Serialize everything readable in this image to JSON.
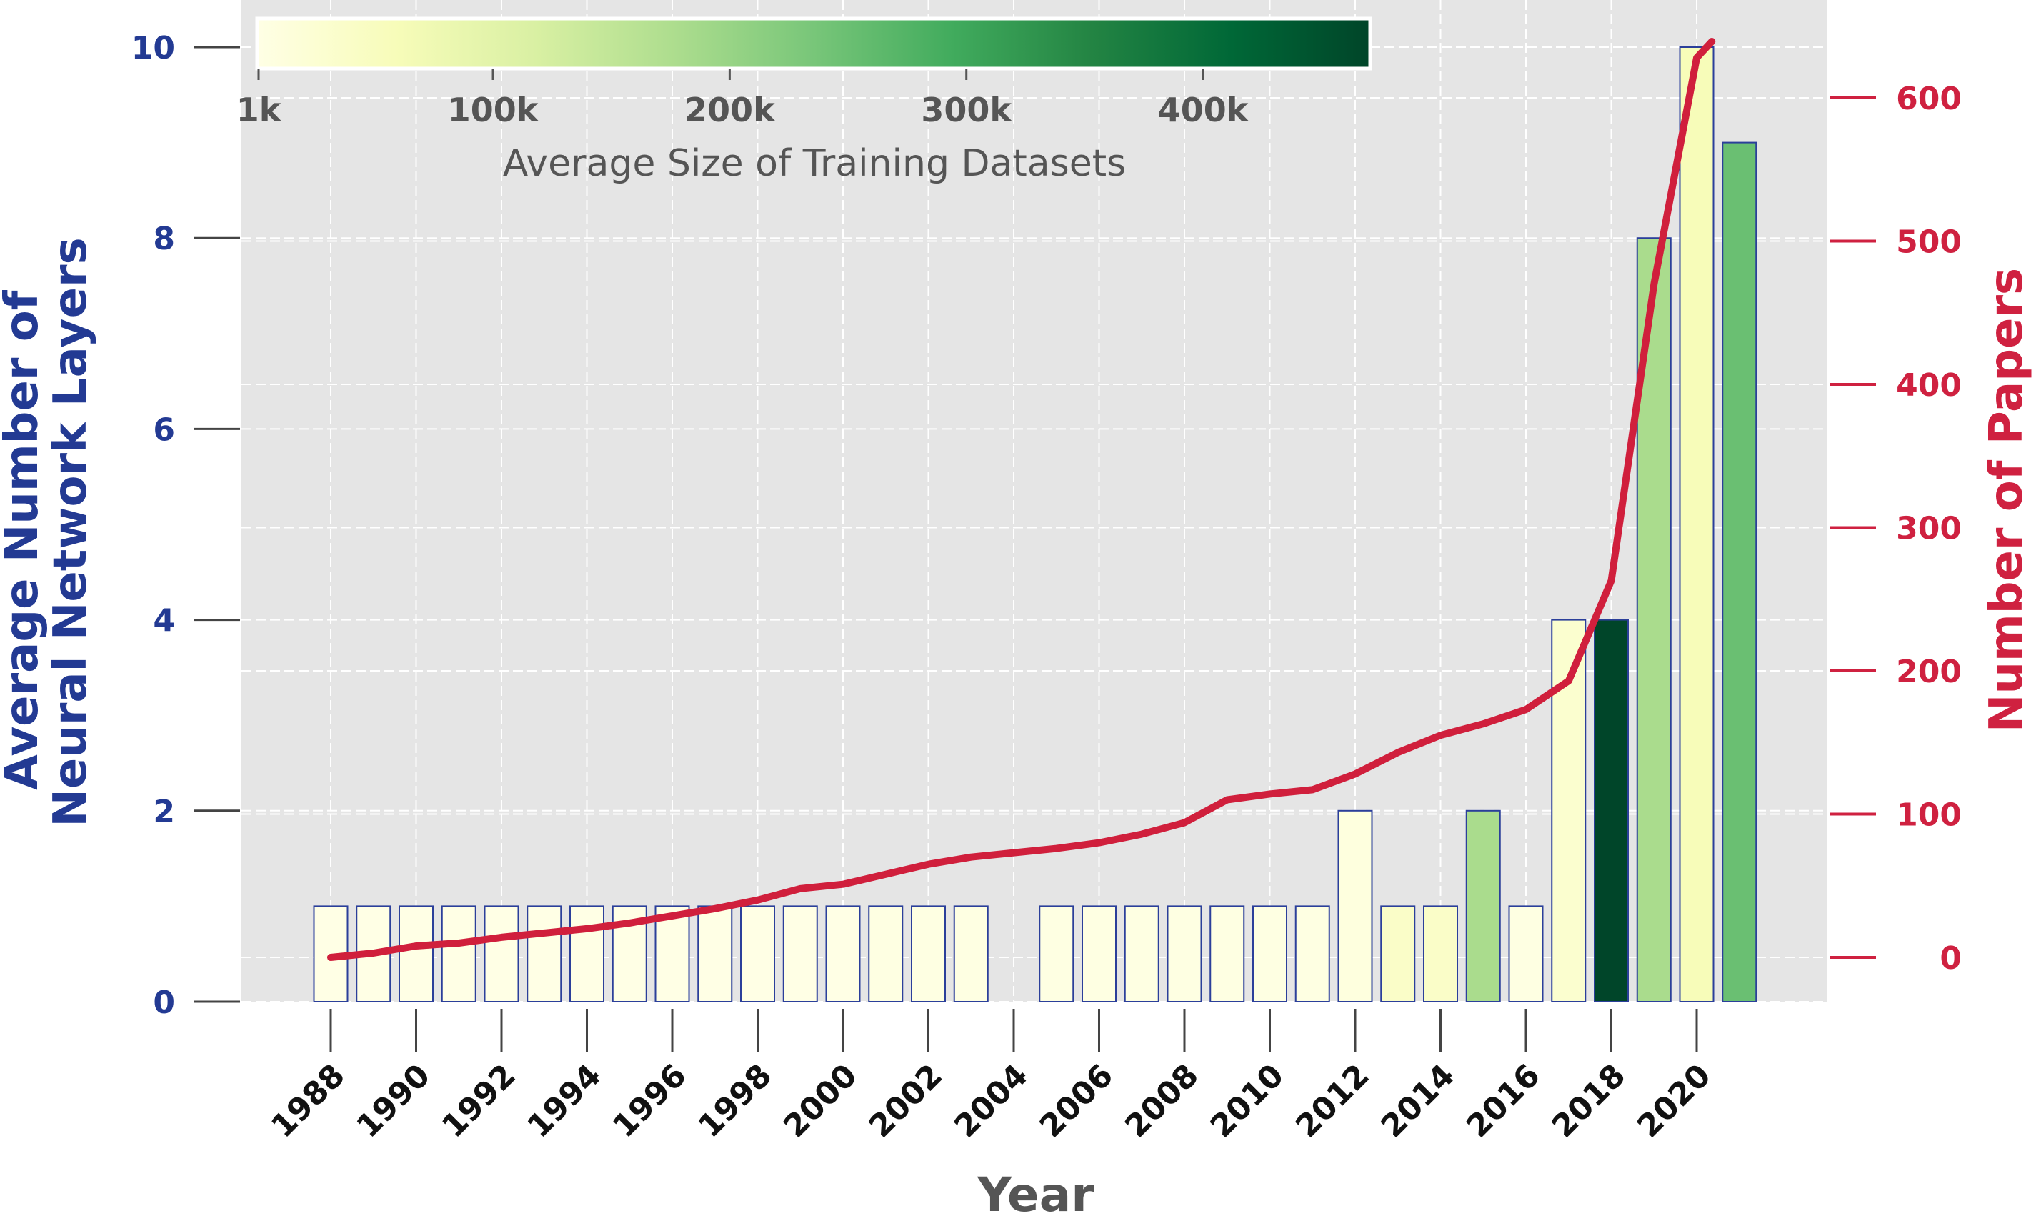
{
  "chart_data": {
    "type": "bar",
    "xlabel": "Year",
    "ylabel_left": "Average Number of Neural Network Layers",
    "ylabel_left_lines": [
      "Average Number of",
      "Neural Network Layers"
    ],
    "ylabel_right": "Number of Papers",
    "ylim_left": [
      0,
      10
    ],
    "ylim_right": [
      -32,
      635
    ],
    "left_ticks": [
      0,
      2,
      4,
      6,
      8,
      10
    ],
    "right_ticks": [
      0,
      100,
      200,
      300,
      400,
      500,
      600
    ],
    "x_ticks": [
      1988,
      1990,
      1992,
      1994,
      1996,
      1998,
      2000,
      2002,
      2004,
      2006,
      2008,
      2010,
      2012,
      2014,
      2016,
      2018,
      2020
    ],
    "years": [
      1988,
      1989,
      1990,
      1991,
      1992,
      1993,
      1994,
      1995,
      1996,
      1997,
      1998,
      1999,
      2000,
      2001,
      2002,
      2003,
      2004,
      2005,
      2006,
      2007,
      2008,
      2009,
      2010,
      2011,
      2012,
      2013,
      2014,
      2015,
      2016,
      2017,
      2018,
      2019,
      2020,
      2021
    ],
    "avg_layers": [
      1,
      1,
      1,
      1,
      1,
      1,
      1,
      1,
      1,
      1,
      1,
      1,
      1,
      1,
      1,
      1,
      null,
      1,
      1,
      1,
      1,
      1,
      1,
      1,
      2,
      1,
      1,
      2,
      1,
      4,
      4,
      8,
      10,
      9
    ],
    "avg_dataset_size_k": [
      1,
      1,
      1,
      1,
      1,
      1,
      1,
      1,
      1,
      1,
      1,
      1,
      1,
      5,
      5,
      5,
      null,
      5,
      5,
      5,
      5,
      5,
      5,
      5,
      10,
      40,
      40,
      180,
      5,
      30,
      470,
      180,
      60,
      250
    ],
    "papers": [
      0,
      3,
      8,
      10,
      14,
      17,
      20,
      24,
      29,
      34,
      40,
      48,
      51,
      58,
      65,
      70,
      73,
      76,
      80,
      86,
      94,
      110,
      114,
      117,
      128,
      143,
      155,
      163,
      173,
      193,
      263,
      470,
      628,
      660
    ],
    "colorbar": {
      "label": "Average Size of Training Datasets",
      "ticks": [
        "1k",
        "100k",
        "200k",
        "300k",
        "400k"
      ],
      "tick_values": [
        1,
        100,
        200,
        300,
        400
      ],
      "range": [
        1,
        470
      ],
      "colormap": "YlGn",
      "placement": "top-left"
    },
    "grid": true,
    "colors": {
      "line": "#d01f3c",
      "bar_edge": "#2b3f9a",
      "left_axis": "#233a93",
      "right_axis": "#cf2140",
      "plot_background": "#e5e5e5"
    }
  }
}
